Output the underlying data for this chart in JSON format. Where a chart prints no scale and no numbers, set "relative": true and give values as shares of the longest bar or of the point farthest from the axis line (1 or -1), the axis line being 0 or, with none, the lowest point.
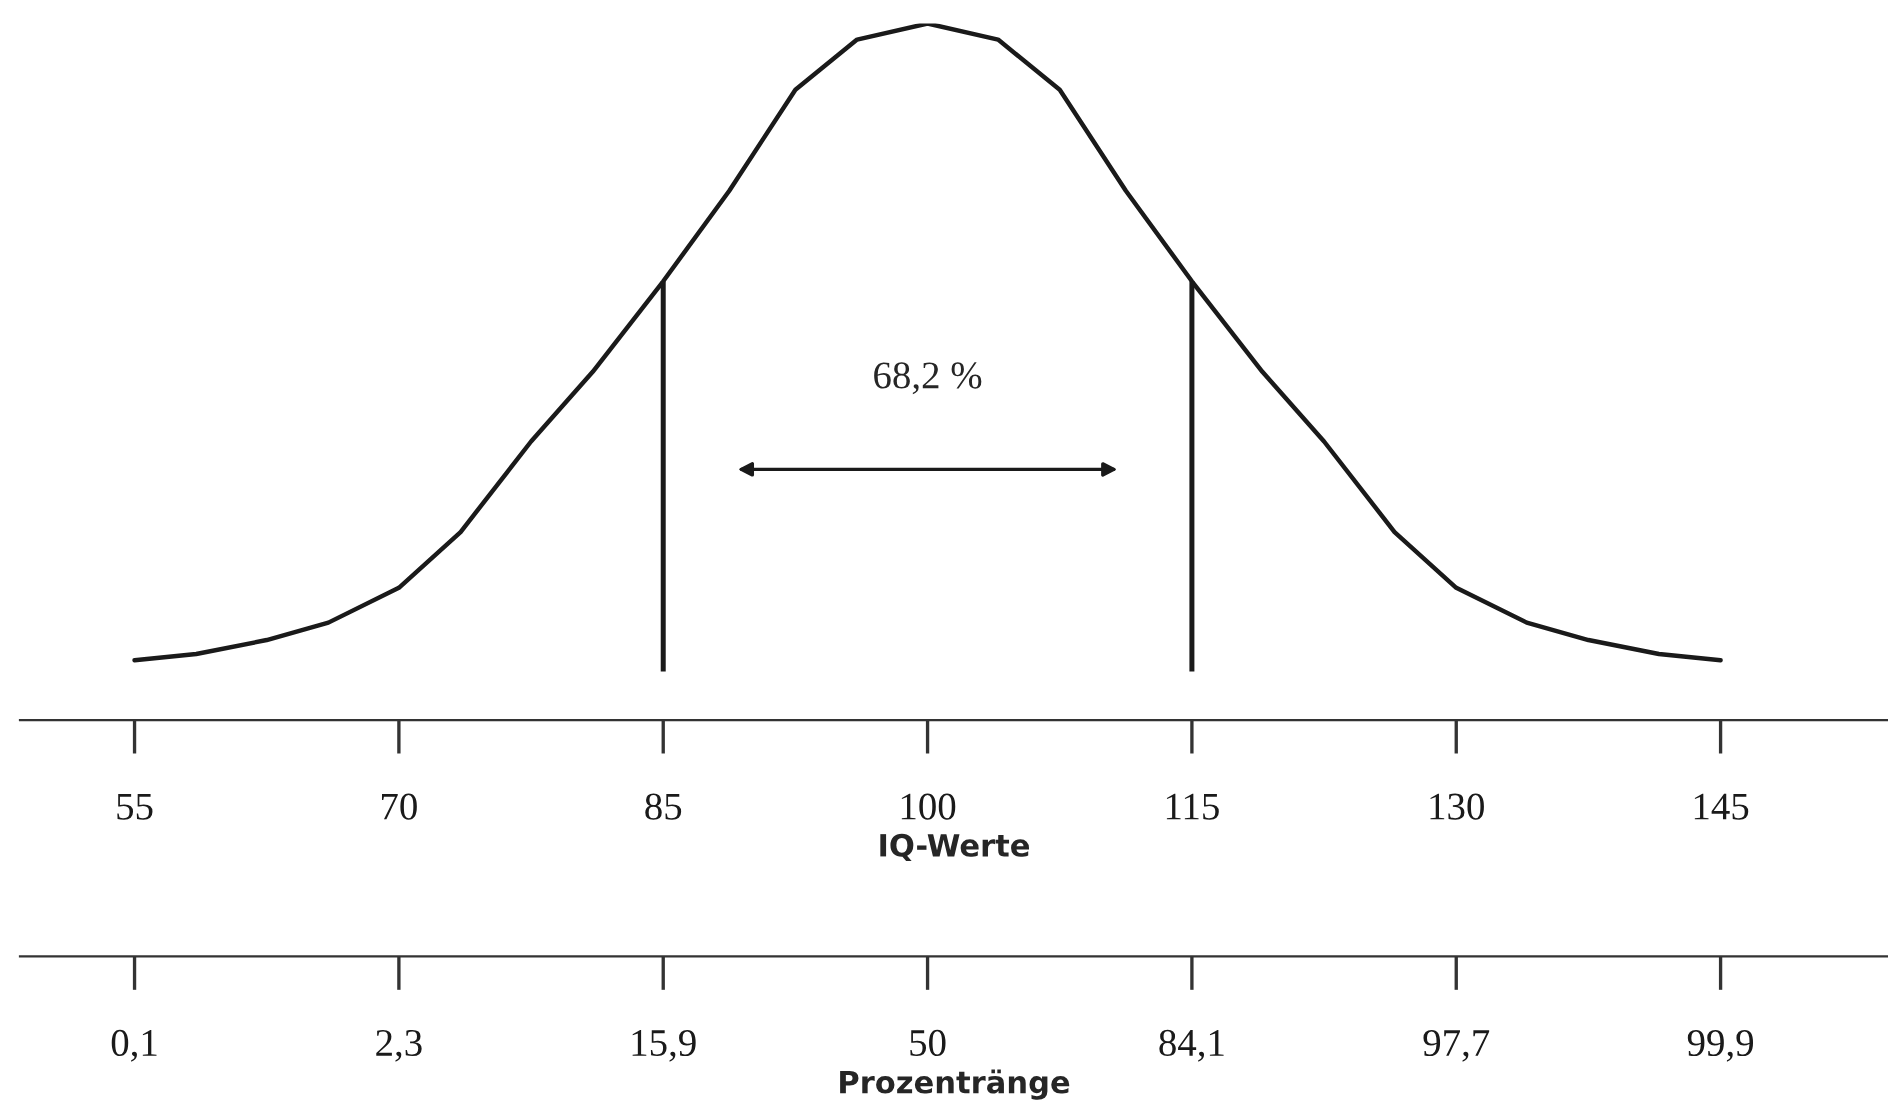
{
  "chart_data": [
    {
      "type": "line",
      "relative": true,
      "xlabel": "IQ-Werte",
      "x": [
        55,
        58.5,
        62.5,
        66,
        70,
        73.5,
        77.5,
        81,
        85,
        88.75,
        92.5,
        96,
        100,
        104,
        107.5,
        111.25,
        115,
        119,
        122.5,
        126.5,
        130,
        134,
        137.5,
        141.5,
        145
      ],
      "series": [
        {
          "color": "#1a1a1a",
          "values": [
            0.086,
            0.095,
            0.115,
            0.14,
            0.19,
            0.27,
            0.4,
            0.5,
            0.63,
            0.76,
            0.905,
            0.977,
            1.0,
            0.977,
            0.905,
            0.76,
            0.63,
            0.5,
            0.4,
            0.27,
            0.19,
            0.14,
            0.115,
            0.095,
            0.086
          ]
        }
      ],
      "xlim": [
        48.5,
        154.5
      ],
      "xticks": [
        55,
        70,
        85,
        100,
        115,
        130,
        145
      ],
      "ref_lines": [
        {
          "axis": "x",
          "value": 85,
          "color": "#1a1a1a"
        },
        {
          "axis": "x",
          "value": 115,
          "color": "#1a1a1a"
        }
      ],
      "annotations": [
        "68,2 %"
      ],
      "grid": false,
      "legend": false,
      "marker": "none",
      "line_style": "solid"
    },
    {
      "type": "other",
      "xlabel": "Prozentränge",
      "categories": [
        "0,1",
        "2,3",
        "15,9",
        "50",
        "84,1",
        "97,7",
        "99,9"
      ]
    }
  ]
}
